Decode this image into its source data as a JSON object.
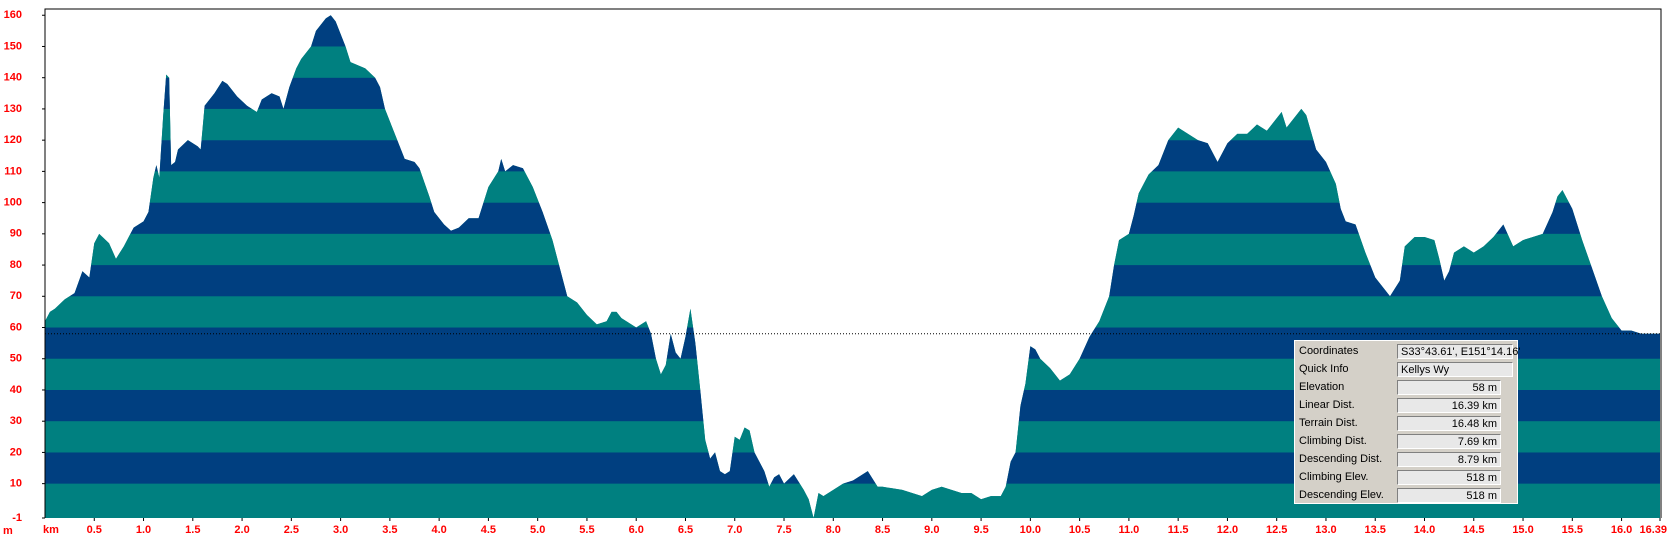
{
  "chart_data": {
    "type": "area",
    "y_unit_label": "m",
    "x_unit_label": "km",
    "band_colors": [
      "#008080",
      "#003f80"
    ],
    "frame_color": "#000000",
    "tick_label_color": "#ff0000",
    "xlim": [
      0,
      16.39
    ],
    "ylim": [
      -1,
      162
    ],
    "xticks": [
      0.5,
      {
        "value": 1,
        "label": "1.0"
      },
      1.5,
      {
        "value": 2,
        "label": "2.0"
      },
      2.5,
      {
        "value": 3,
        "label": "3.0"
      },
      3.5,
      {
        "value": 4,
        "label": "4.0"
      },
      4.5,
      {
        "value": 5,
        "label": "5.0"
      },
      5.5,
      {
        "value": 6,
        "label": "6.0"
      },
      6.5,
      {
        "value": 7,
        "label": "7.0"
      },
      7.5,
      {
        "value": 8,
        "label": "8.0"
      },
      8.5,
      {
        "value": 9,
        "label": "9.0"
      },
      9.5,
      {
        "value": 10,
        "label": "10.0"
      },
      10.5,
      {
        "value": 11,
        "label": "11.0"
      },
      11.5,
      {
        "value": 12,
        "label": "12.0"
      },
      12.5,
      {
        "value": 13,
        "label": "13.0"
      },
      13.5,
      {
        "value": 14,
        "label": "14.0"
      },
      14.5,
      {
        "value": 15,
        "label": "15.0"
      },
      15.5,
      {
        "value": 16,
        "label": "16.0"
      },
      16.39
    ],
    "yticks": [
      -1,
      10,
      20,
      30,
      40,
      50,
      60,
      70,
      80,
      90,
      100,
      110,
      120,
      130,
      140,
      150,
      160
    ],
    "x": [
      0,
      0.05,
      0.1,
      0.2,
      0.3,
      0.38,
      0.45,
      0.5,
      0.55,
      0.65,
      0.72,
      0.8,
      0.9,
      1.0,
      1.05,
      1.1,
      1.13,
      1.16,
      1.2,
      1.23,
      1.26,
      1.28,
      1.32,
      1.35,
      1.45,
      1.55,
      1.58,
      1.62,
      1.72,
      1.8,
      1.85,
      1.95,
      2.05,
      2.15,
      2.2,
      2.3,
      2.38,
      2.42,
      2.48,
      2.55,
      2.6,
      2.7,
      2.75,
      2.85,
      2.9,
      2.95,
      3.05,
      3.1,
      3.25,
      3.35,
      3.4,
      3.45,
      3.5,
      3.6,
      3.65,
      3.75,
      3.8,
      3.9,
      3.95,
      4.05,
      4.12,
      4.2,
      4.3,
      4.4,
      4.45,
      4.5,
      4.6,
      4.63,
      4.67,
      4.75,
      4.85,
      4.95,
      5.05,
      5.15,
      5.25,
      5.3,
      5.4,
      5.5,
      5.6,
      5.7,
      5.75,
      5.8,
      5.85,
      5.9,
      5.95,
      6.0,
      6.1,
      6.15,
      6.2,
      6.25,
      6.3,
      6.35,
      6.4,
      6.45,
      6.5,
      6.55,
      6.6,
      6.65,
      6.7,
      6.75,
      6.8,
      6.85,
      6.9,
      6.95,
      7.0,
      7.05,
      7.1,
      7.15,
      7.2,
      7.3,
      7.35,
      7.4,
      7.45,
      7.5,
      7.6,
      7.7,
      7.75,
      7.8,
      7.85,
      7.9,
      8.0,
      8.1,
      8.2,
      8.3,
      8.35,
      8.45,
      8.5,
      8.7,
      8.9,
      9.0,
      9.1,
      9.2,
      9.3,
      9.4,
      9.5,
      9.6,
      9.7,
      9.75,
      9.8,
      9.85,
      9.9,
      9.95,
      10.0,
      10.05,
      10.1,
      10.2,
      10.3,
      10.4,
      10.5,
      10.6,
      10.7,
      10.8,
      10.85,
      10.9,
      11.0,
      11.05,
      11.1,
      11.2,
      11.3,
      11.4,
      11.5,
      11.6,
      11.7,
      11.8,
      11.9,
      12.0,
      12.1,
      12.2,
      12.3,
      12.4,
      12.5,
      12.55,
      12.6,
      12.7,
      12.75,
      12.8,
      12.9,
      13.0,
      13.1,
      13.15,
      13.2,
      13.3,
      13.4,
      13.5,
      13.6,
      13.65,
      13.75,
      13.8,
      13.9,
      14.0,
      14.1,
      14.15,
      14.2,
      14.25,
      14.3,
      14.4,
      14.5,
      14.6,
      14.7,
      14.8,
      14.9,
      15.0,
      15.1,
      15.2,
      15.3,
      15.35,
      15.4,
      15.5,
      15.6,
      15.7,
      15.8,
      15.9,
      16.0,
      16.1,
      16.2,
      16.39
    ],
    "values": [
      62,
      65,
      66,
      69,
      71,
      78,
      76,
      87,
      90,
      87,
      82,
      86,
      92,
      94,
      97,
      108,
      112,
      108,
      128,
      141,
      140,
      112,
      113,
      117,
      120,
      118,
      117,
      131,
      135,
      139,
      138,
      134,
      131,
      129,
      133,
      135,
      134,
      130,
      137,
      143,
      146,
      150,
      155,
      159,
      160,
      158,
      150,
      145,
      143,
      140,
      137,
      130,
      126,
      118,
      114,
      113,
      111,
      102,
      97,
      93,
      91,
      92,
      95,
      95,
      100,
      105,
      110,
      114,
      110,
      112,
      111,
      105,
      97,
      88,
      76,
      70,
      68,
      64,
      61,
      62,
      65,
      65,
      63,
      62,
      61,
      60,
      62,
      58,
      50,
      45,
      48,
      58,
      52,
      50,
      57,
      66,
      55,
      40,
      24,
      18,
      20,
      14,
      13,
      14,
      25,
      24,
      28,
      27,
      20,
      14,
      9,
      12,
      13,
      10,
      13,
      8,
      5,
      -1,
      7,
      6,
      8,
      10,
      11,
      13,
      14,
      9,
      9,
      8,
      6,
      8,
      9,
      8,
      7,
      7,
      5,
      6,
      6,
      9,
      17,
      20,
      35,
      42,
      54,
      53,
      50,
      47,
      43,
      45,
      50,
      57,
      62,
      70,
      80,
      88,
      90,
      96,
      103,
      109,
      112,
      120,
      124,
      122,
      120,
      119,
      113,
      119,
      122,
      122,
      125,
      123,
      127,
      129,
      124,
      128,
      130,
      128,
      117,
      113,
      106,
      98,
      94,
      93,
      84,
      76,
      72,
      70,
      75,
      86,
      89,
      89,
      88,
      82,
      75,
      78,
      84,
      86,
      84,
      86,
      89,
      93,
      86,
      88,
      89,
      90,
      97,
      102,
      104,
      98,
      88,
      79,
      70,
      63,
      59,
      59,
      58,
      58
    ]
  },
  "info_panel": {
    "rows": [
      {
        "label": "Coordinates",
        "value": "S33°43.61', E151°14.16'"
      },
      {
        "label": "Quick Info",
        "value": "Kellys Wy"
      },
      {
        "label": "Elevation",
        "value": {
          "value": 58,
          "label": "58 m"
        }
      },
      {
        "label": "Linear Dist.",
        "value": "16.39 km"
      },
      {
        "label": "Terrain Dist.",
        "value": "16.48 km"
      },
      {
        "label": "Climbing Dist.",
        "value": "7.69 km"
      },
      {
        "label": "Descending Dist.",
        "value": "8.79 km"
      },
      {
        "label": "Climbing Elev.",
        "value": "518 m"
      },
      {
        "label": "Descending Elev.",
        "value": "518 m"
      }
    ]
  }
}
